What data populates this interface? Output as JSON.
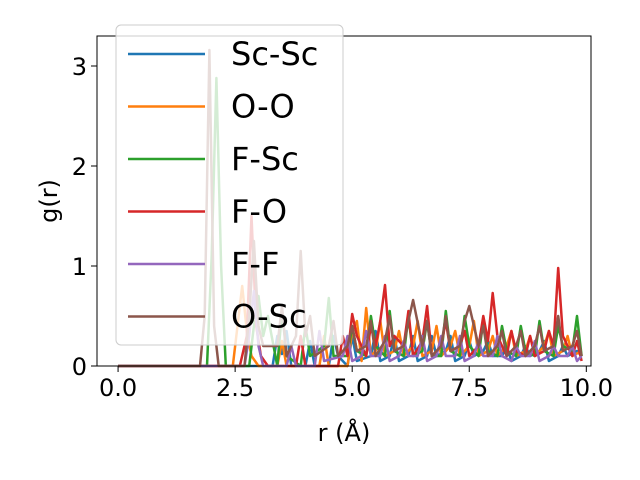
{
  "chart_data": {
    "type": "line",
    "xlabel": "r (Å)",
    "ylabel": "g(r)",
    "xlim": [
      -0.45,
      10.1
    ],
    "ylim": [
      0,
      3.3
    ],
    "xticks": [
      0.0,
      2.5,
      5.0,
      7.5,
      10.0
    ],
    "xtick_labels": [
      "0.0",
      "2.5",
      "5.0",
      "7.5",
      "10.0"
    ],
    "yticks": [
      0,
      1,
      2,
      3
    ],
    "ytick_labels": [
      "0",
      "1",
      "2",
      "3"
    ],
    "grid": false,
    "legend_position": "upper-left",
    "series": [
      {
        "name": "Sc-Sc",
        "color": "#1f77b4",
        "x": [
          0,
          3.3,
          3.4,
          3.5,
          3.6,
          3.7,
          4.0,
          4.1,
          4.2,
          4.5,
          4.6,
          4.7,
          4.9,
          5.0,
          5.1,
          5.4,
          5.5,
          5.6,
          5.8,
          5.9,
          6.0,
          6.2,
          6.3,
          6.4,
          6.6,
          6.7,
          6.8,
          7.0,
          7.1,
          7.2,
          7.4,
          7.5,
          7.6,
          7.8,
          7.9,
          8.0,
          8.2,
          8.3,
          8.4,
          8.6,
          8.7,
          8.8,
          9.0,
          9.1,
          9.2,
          9.4,
          9.5,
          9.6,
          9.8,
          9.9
        ],
        "y": [
          0,
          0,
          0.3,
          0.12,
          0.35,
          0,
          0,
          0.25,
          0,
          0,
          0.3,
          0.1,
          0,
          0.3,
          0.05,
          0.1,
          0.35,
          0.05,
          0.1,
          0.3,
          0.05,
          0.1,
          0.3,
          0.05,
          0.1,
          0.3,
          0.1,
          0.15,
          0.3,
          0.05,
          0.1,
          0.25,
          0.1,
          0.15,
          0.25,
          0.1,
          0.1,
          0.2,
          0.05,
          0.1,
          0.2,
          0.1,
          0.15,
          0.25,
          0.05,
          0.1,
          0.2,
          0.1,
          0.15,
          0.1
        ]
      },
      {
        "name": "O-O",
        "color": "#ff7f0e",
        "x": [
          0,
          2.45,
          2.55,
          2.65,
          2.75,
          2.85,
          3.0,
          3.4,
          3.5,
          3.6,
          4.3,
          4.4,
          4.5,
          4.9,
          5.0,
          5.1,
          5.2,
          5.3,
          5.4,
          5.5,
          5.6,
          5.7,
          5.9,
          6.0,
          6.1,
          6.3,
          6.4,
          6.5,
          6.7,
          6.8,
          6.9,
          7.1,
          7.2,
          7.3,
          7.5,
          7.6,
          7.7,
          7.9,
          8.0,
          8.1,
          8.3,
          8.4,
          8.5,
          8.7,
          8.8,
          8.9,
          9.1,
          9.2,
          9.3,
          9.5,
          9.6,
          9.7,
          9.9
        ],
        "y": [
          0,
          0,
          0.4,
          0.8,
          0.35,
          0.1,
          0,
          0,
          0.25,
          0,
          0,
          0.3,
          0,
          0,
          0.35,
          0.45,
          0.05,
          0.58,
          0.1,
          0.15,
          0.45,
          0.1,
          0.15,
          0.35,
          0.1,
          0.2,
          0.45,
          0.1,
          0.15,
          0.4,
          0.1,
          0.2,
          0.35,
          0.1,
          0.2,
          0.45,
          0.1,
          0.15,
          0.3,
          0.1,
          0.2,
          0.35,
          0.1,
          0.15,
          0.3,
          0.1,
          0.2,
          0.35,
          0.1,
          0.15,
          0.3,
          0.1,
          0.15
        ]
      },
      {
        "name": "F-Sc",
        "color": "#2ca02c",
        "x": [
          0,
          1.9,
          2.0,
          2.1,
          2.2,
          2.3,
          2.8,
          2.9,
          3.0,
          3.1,
          3.2,
          3.4,
          3.5,
          3.6,
          3.9,
          4.0,
          4.1,
          4.4,
          4.5,
          4.6,
          4.9,
          5.0,
          5.1,
          5.3,
          5.4,
          5.5,
          5.7,
          5.8,
          5.9,
          6.1,
          6.2,
          6.3,
          6.5,
          6.6,
          6.7,
          6.9,
          7.0,
          7.1,
          7.3,
          7.4,
          7.5,
          7.7,
          7.8,
          7.9,
          8.1,
          8.2,
          8.3,
          8.5,
          8.6,
          8.7,
          8.9,
          9.0,
          9.1,
          9.3,
          9.4,
          9.5,
          9.7,
          9.8,
          9.9
        ],
        "y": [
          0,
          0,
          1.1,
          2.88,
          1.0,
          0,
          0,
          0.4,
          0.7,
          0.3,
          0.5,
          0,
          0.55,
          0.1,
          0,
          0.4,
          0.1,
          0.2,
          0.68,
          0.1,
          0.1,
          0.4,
          0.15,
          0.1,
          0.5,
          0.2,
          0.1,
          0.55,
          0.15,
          0.1,
          0.5,
          0.1,
          0.15,
          0.45,
          0.1,
          0.1,
          0.55,
          0.15,
          0.1,
          0.5,
          0.2,
          0.1,
          0.45,
          0.15,
          0.1,
          0.4,
          0.15,
          0.1,
          0.4,
          0.15,
          0.1,
          0.45,
          0.15,
          0.1,
          0.4,
          0.2,
          0.15,
          0.5,
          0.1
        ]
      },
      {
        "name": "F-O",
        "color": "#d62728",
        "x": [
          0,
          2.6,
          2.75,
          2.85,
          2.95,
          3.05,
          3.2,
          3.8,
          3.9,
          4.0,
          4.7,
          4.8,
          4.9,
          5.0,
          5.1,
          5.3,
          5.4,
          5.5,
          5.6,
          5.7,
          5.8,
          5.9,
          6.1,
          6.2,
          6.3,
          6.5,
          6.6,
          6.7,
          6.9,
          7.0,
          7.1,
          7.3,
          7.4,
          7.5,
          7.7,
          7.8,
          7.9,
          8.0,
          8.1,
          8.3,
          8.4,
          8.5,
          8.7,
          8.8,
          8.9,
          9.1,
          9.2,
          9.3,
          9.4,
          9.5,
          9.7,
          9.8,
          9.9
        ],
        "y": [
          0,
          0,
          0.3,
          1.5,
          0.4,
          0.1,
          0,
          0,
          0.3,
          0,
          0,
          0.3,
          0.1,
          0.52,
          0.3,
          0.1,
          0.4,
          0.2,
          0.45,
          0.81,
          0.2,
          0.3,
          0.2,
          0.55,
          0.1,
          0.25,
          0.6,
          0.1,
          0.2,
          0.45,
          0.15,
          0.2,
          0.35,
          0.1,
          0.2,
          0.5,
          0.25,
          0.73,
          0.3,
          0.1,
          0.35,
          0.15,
          0.1,
          0.3,
          0.1,
          0.15,
          0.35,
          0.2,
          0.98,
          0.3,
          0.1,
          0.25,
          0.05
        ]
      },
      {
        "name": "F-F",
        "color": "#9467bd",
        "x": [
          0,
          2.7,
          2.8,
          2.9,
          3.0,
          3.1,
          3.6,
          3.7,
          3.8,
          4.2,
          4.3,
          4.4,
          4.8,
          4.9,
          5.0,
          5.2,
          5.3,
          5.4,
          5.6,
          5.7,
          5.8,
          6.0,
          6.1,
          6.2,
          6.4,
          6.5,
          6.6,
          6.8,
          6.9,
          7.0,
          7.2,
          7.3,
          7.4,
          7.6,
          7.7,
          7.8,
          8.0,
          8.1,
          8.2,
          8.4,
          8.5,
          8.6,
          8.8,
          8.9,
          9.0,
          9.2,
          9.3,
          9.4,
          9.6,
          9.7,
          9.8,
          9.9
        ],
        "y": [
          0,
          0,
          0.3,
          0.75,
          0.2,
          0,
          0,
          0.2,
          0,
          0,
          0.35,
          0.05,
          0.1,
          0.3,
          0.05,
          0.1,
          0.35,
          0.1,
          0.1,
          0.3,
          0.05,
          0.1,
          0.25,
          0.1,
          0.1,
          0.3,
          0.05,
          0.1,
          0.3,
          0.1,
          0.1,
          0.3,
          0.05,
          0.1,
          0.25,
          0.1,
          0.1,
          0.3,
          0.1,
          0.05,
          0.2,
          0.1,
          0.1,
          0.25,
          0.05,
          0.1,
          0.2,
          0.1,
          0.1,
          0.2,
          0.05,
          0.1
        ]
      },
      {
        "name": "O-Sc",
        "color": "#8c564b",
        "x": [
          0,
          1.75,
          1.85,
          1.95,
          2.05,
          2.15,
          2.7,
          2.8,
          2.9,
          3.0,
          3.1,
          3.4,
          3.5,
          3.6,
          3.8,
          3.9,
          4.0,
          4.1,
          4.2,
          4.5,
          4.6,
          4.7,
          4.9,
          5.0,
          5.1,
          5.3,
          5.4,
          5.5,
          5.7,
          5.8,
          5.9,
          6.1,
          6.2,
          6.3,
          6.5,
          6.6,
          6.7,
          6.9,
          7.0,
          7.1,
          7.3,
          7.4,
          7.5,
          7.7,
          7.8,
          7.9,
          8.1,
          8.2,
          8.3,
          8.5,
          8.6,
          8.7,
          8.9,
          9.0,
          9.1,
          9.3,
          9.4,
          9.5,
          9.7,
          9.8,
          9.9
        ],
        "y": [
          0,
          0,
          0.5,
          3.16,
          0.4,
          0,
          0,
          0.5,
          1.25,
          0.4,
          0.2,
          0.2,
          0.6,
          0.1,
          0.3,
          1.15,
          0.3,
          0.5,
          0.1,
          0.2,
          0.45,
          0.1,
          0.2,
          0.4,
          0.15,
          0.2,
          0.45,
          0.1,
          0.25,
          0.5,
          0.15,
          0.2,
          0.45,
          0.66,
          0.2,
          0.45,
          0.1,
          0.2,
          0.5,
          0.15,
          0.2,
          0.45,
          0.6,
          0.2,
          0.4,
          0.1,
          0.2,
          0.35,
          0.1,
          0.2,
          0.35,
          0.1,
          0.2,
          0.4,
          0.15,
          0.2,
          0.5,
          0.15,
          0.2,
          0.35,
          0.1
        ]
      }
    ]
  }
}
